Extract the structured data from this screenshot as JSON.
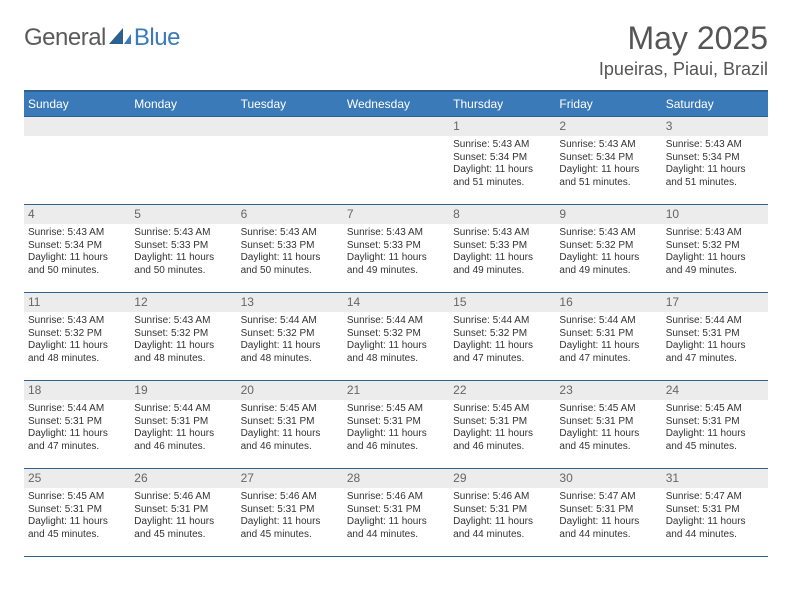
{
  "logo": {
    "text1": "General",
    "text2": "Blue"
  },
  "title": "May 2025",
  "location": "Ipueiras, Piaui, Brazil",
  "colors": {
    "header_bg": "#3a7ab8",
    "header_border": "#2d5f8f",
    "daynum_bg": "#ececec",
    "text": "#333333",
    "logo_gray": "#5a5a5a",
    "logo_blue": "#3a7ab8"
  },
  "daysOfWeek": [
    "Sunday",
    "Monday",
    "Tuesday",
    "Wednesday",
    "Thursday",
    "Friday",
    "Saturday"
  ],
  "startOffset": 4,
  "days": [
    {
      "n": 1,
      "sunrise": "5:43 AM",
      "sunset": "5:34 PM",
      "daylight": "11 hours and 51 minutes."
    },
    {
      "n": 2,
      "sunrise": "5:43 AM",
      "sunset": "5:34 PM",
      "daylight": "11 hours and 51 minutes."
    },
    {
      "n": 3,
      "sunrise": "5:43 AM",
      "sunset": "5:34 PM",
      "daylight": "11 hours and 51 minutes."
    },
    {
      "n": 4,
      "sunrise": "5:43 AM",
      "sunset": "5:34 PM",
      "daylight": "11 hours and 50 minutes."
    },
    {
      "n": 5,
      "sunrise": "5:43 AM",
      "sunset": "5:33 PM",
      "daylight": "11 hours and 50 minutes."
    },
    {
      "n": 6,
      "sunrise": "5:43 AM",
      "sunset": "5:33 PM",
      "daylight": "11 hours and 50 minutes."
    },
    {
      "n": 7,
      "sunrise": "5:43 AM",
      "sunset": "5:33 PM",
      "daylight": "11 hours and 49 minutes."
    },
    {
      "n": 8,
      "sunrise": "5:43 AM",
      "sunset": "5:33 PM",
      "daylight": "11 hours and 49 minutes."
    },
    {
      "n": 9,
      "sunrise": "5:43 AM",
      "sunset": "5:32 PM",
      "daylight": "11 hours and 49 minutes."
    },
    {
      "n": 10,
      "sunrise": "5:43 AM",
      "sunset": "5:32 PM",
      "daylight": "11 hours and 49 minutes."
    },
    {
      "n": 11,
      "sunrise": "5:43 AM",
      "sunset": "5:32 PM",
      "daylight": "11 hours and 48 minutes."
    },
    {
      "n": 12,
      "sunrise": "5:43 AM",
      "sunset": "5:32 PM",
      "daylight": "11 hours and 48 minutes."
    },
    {
      "n": 13,
      "sunrise": "5:44 AM",
      "sunset": "5:32 PM",
      "daylight": "11 hours and 48 minutes."
    },
    {
      "n": 14,
      "sunrise": "5:44 AM",
      "sunset": "5:32 PM",
      "daylight": "11 hours and 48 minutes."
    },
    {
      "n": 15,
      "sunrise": "5:44 AM",
      "sunset": "5:32 PM",
      "daylight": "11 hours and 47 minutes."
    },
    {
      "n": 16,
      "sunrise": "5:44 AM",
      "sunset": "5:31 PM",
      "daylight": "11 hours and 47 minutes."
    },
    {
      "n": 17,
      "sunrise": "5:44 AM",
      "sunset": "5:31 PM",
      "daylight": "11 hours and 47 minutes."
    },
    {
      "n": 18,
      "sunrise": "5:44 AM",
      "sunset": "5:31 PM",
      "daylight": "11 hours and 47 minutes."
    },
    {
      "n": 19,
      "sunrise": "5:44 AM",
      "sunset": "5:31 PM",
      "daylight": "11 hours and 46 minutes."
    },
    {
      "n": 20,
      "sunrise": "5:45 AM",
      "sunset": "5:31 PM",
      "daylight": "11 hours and 46 minutes."
    },
    {
      "n": 21,
      "sunrise": "5:45 AM",
      "sunset": "5:31 PM",
      "daylight": "11 hours and 46 minutes."
    },
    {
      "n": 22,
      "sunrise": "5:45 AM",
      "sunset": "5:31 PM",
      "daylight": "11 hours and 46 minutes."
    },
    {
      "n": 23,
      "sunrise": "5:45 AM",
      "sunset": "5:31 PM",
      "daylight": "11 hours and 45 minutes."
    },
    {
      "n": 24,
      "sunrise": "5:45 AM",
      "sunset": "5:31 PM",
      "daylight": "11 hours and 45 minutes."
    },
    {
      "n": 25,
      "sunrise": "5:45 AM",
      "sunset": "5:31 PM",
      "daylight": "11 hours and 45 minutes."
    },
    {
      "n": 26,
      "sunrise": "5:46 AM",
      "sunset": "5:31 PM",
      "daylight": "11 hours and 45 minutes."
    },
    {
      "n": 27,
      "sunrise": "5:46 AM",
      "sunset": "5:31 PM",
      "daylight": "11 hours and 45 minutes."
    },
    {
      "n": 28,
      "sunrise": "5:46 AM",
      "sunset": "5:31 PM",
      "daylight": "11 hours and 44 minutes."
    },
    {
      "n": 29,
      "sunrise": "5:46 AM",
      "sunset": "5:31 PM",
      "daylight": "11 hours and 44 minutes."
    },
    {
      "n": 30,
      "sunrise": "5:47 AM",
      "sunset": "5:31 PM",
      "daylight": "11 hours and 44 minutes."
    },
    {
      "n": 31,
      "sunrise": "5:47 AM",
      "sunset": "5:31 PM",
      "daylight": "11 hours and 44 minutes."
    }
  ],
  "labels": {
    "sunrise": "Sunrise: ",
    "sunset": "Sunset: ",
    "daylight": "Daylight: "
  }
}
